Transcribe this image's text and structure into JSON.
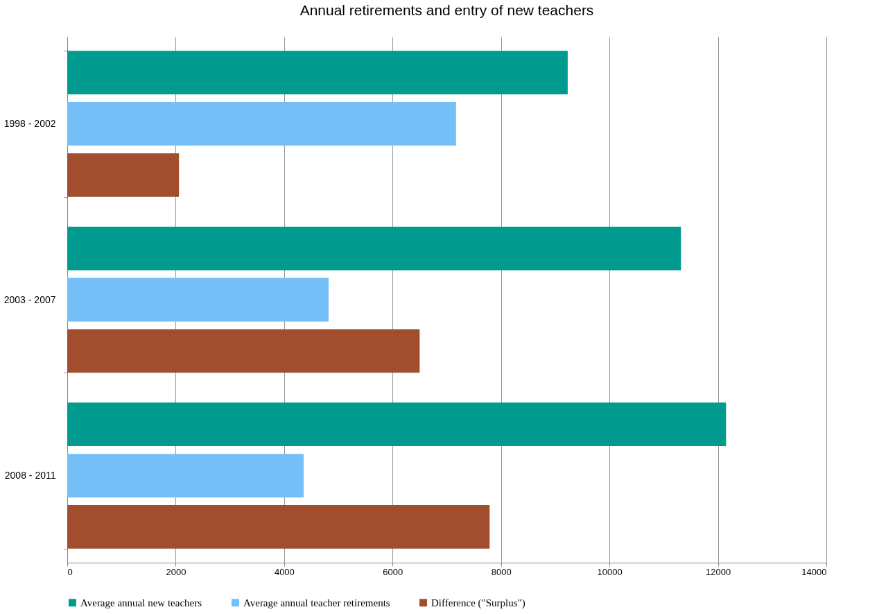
{
  "chart_data": {
    "type": "bar",
    "orientation": "horizontal",
    "title": "Annual retirements and entry of new teachers",
    "categories": [
      "1998 - 2002",
      "2003 - 2007",
      "2008 - 2011"
    ],
    "series": [
      {
        "name": "Average annual new teachers",
        "color": "#009a8e",
        "values": [
          9230,
          11320,
          12150
        ]
      },
      {
        "name": "Average annual teacher retirements",
        "color": "#75bff8",
        "values": [
          7170,
          4820,
          4360
        ]
      },
      {
        "name": "Difference (\"Surplus\")",
        "color": "#a14e2f",
        "values": [
          2060,
          6500,
          7790
        ]
      }
    ],
    "xlim": [
      0,
      14000
    ],
    "xticks": [
      0,
      2000,
      4000,
      6000,
      8000,
      10000,
      12000,
      14000
    ],
    "grid": "x",
    "legend": "bottom"
  }
}
